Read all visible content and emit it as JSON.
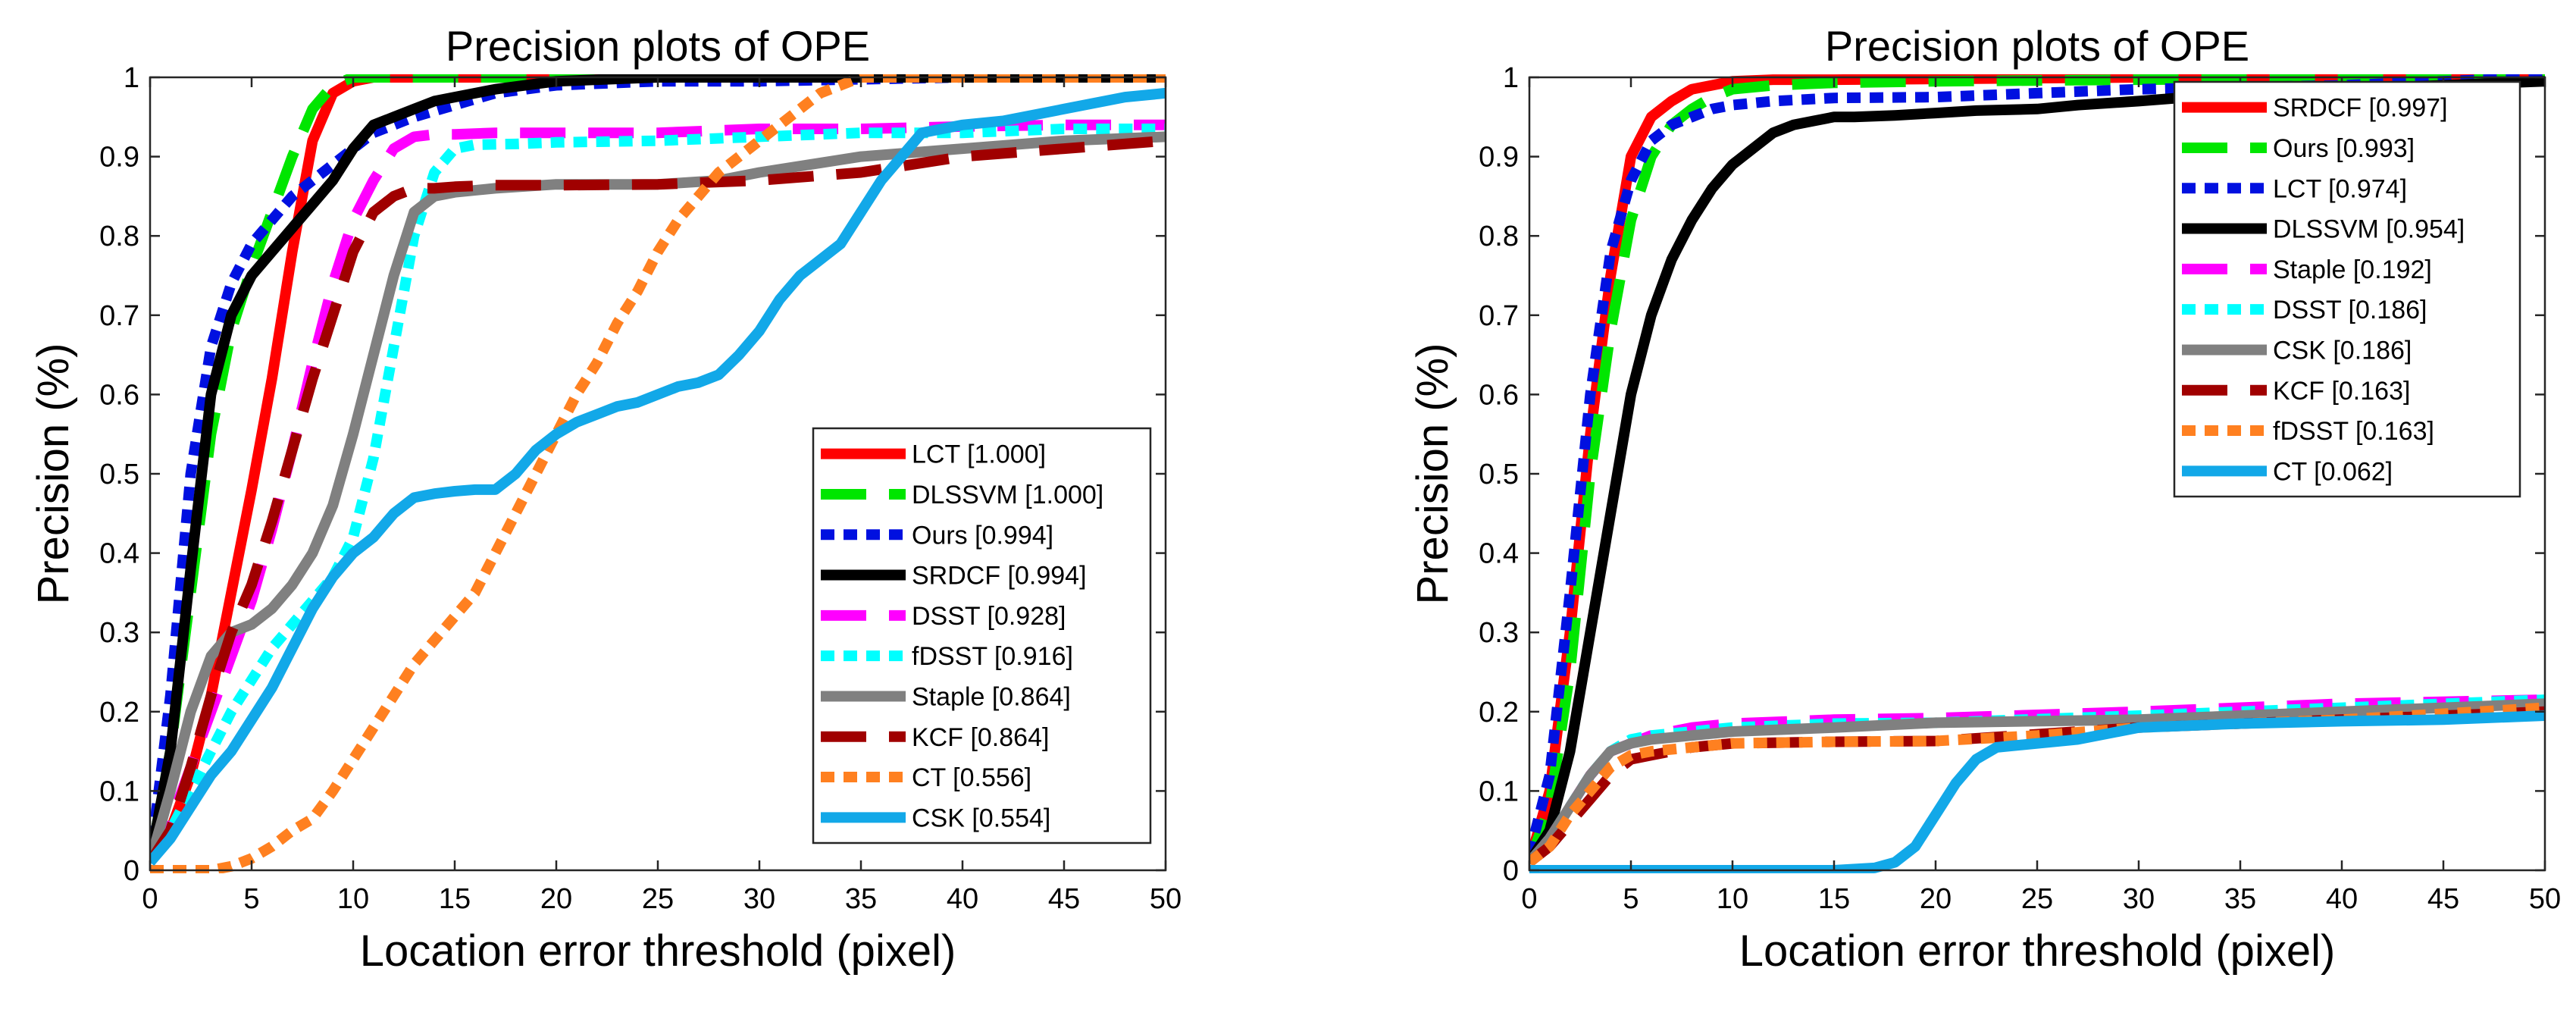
{
  "chart_data": [
    {
      "type": "line",
      "title": "Precision plots of OPE",
      "xlabel": "Location error threshold (pixel)",
      "ylabel": "Precision (%)",
      "xlim": [
        0,
        50
      ],
      "ylim": [
        0,
        1
      ],
      "xticks": [
        0,
        5,
        10,
        15,
        20,
        25,
        30,
        35,
        40,
        45,
        50
      ],
      "yticks": [
        0,
        0.1,
        0.2,
        0.3,
        0.4,
        0.5,
        0.6,
        0.7,
        0.8,
        0.9,
        1
      ],
      "xtick_labels": [
        "0",
        "5",
        "10",
        "15",
        "20",
        "25",
        "30",
        "35",
        "40",
        "45",
        "50"
      ],
      "ytick_labels": [
        "0",
        "0.1",
        "0.2",
        "0.3",
        "0.4",
        "0.5",
        "0.6",
        "0.7",
        "0.8",
        "0.9",
        "1"
      ],
      "grid": false,
      "legend_position": "lower-right",
      "series": [
        {
          "name": "LCT [1.000]",
          "color": "#ff0000",
          "style": "solid",
          "x": [
            0,
            1,
            2,
            3,
            4,
            5,
            6,
            7,
            8,
            9,
            10,
            11,
            12,
            15,
            20,
            50
          ],
          "y": [
            0.01,
            0.05,
            0.12,
            0.22,
            0.35,
            0.48,
            0.62,
            0.78,
            0.92,
            0.98,
            0.995,
            1,
            1,
            1,
            1,
            1
          ]
        },
        {
          "name": "DLSSVM [1.000]",
          "color": "#00e600",
          "style": "dash",
          "x": [
            0,
            1,
            2,
            3,
            4,
            5,
            6,
            7,
            8,
            9,
            10,
            12,
            15,
            50
          ],
          "y": [
            0.01,
            0.15,
            0.35,
            0.55,
            0.68,
            0.76,
            0.83,
            0.9,
            0.96,
            0.99,
            1,
            1,
            1,
            1
          ]
        },
        {
          "name": "Ours [0.994]",
          "color": "#0010e0",
          "style": "dot",
          "x": [
            0,
            1,
            2,
            3,
            4,
            5,
            6,
            7,
            8,
            9,
            10,
            11,
            12,
            13,
            15,
            17,
            20,
            25,
            30,
            40,
            50
          ],
          "y": [
            0.01,
            0.22,
            0.5,
            0.66,
            0.74,
            0.79,
            0.82,
            0.85,
            0.87,
            0.89,
            0.91,
            0.93,
            0.94,
            0.95,
            0.965,
            0.98,
            0.99,
            0.995,
            0.995,
            1,
            1
          ]
        },
        {
          "name": "SRDCF [0.994]",
          "color": "#000000",
          "style": "solid",
          "x": [
            0,
            1,
            2,
            3,
            4,
            5,
            6,
            7,
            8,
            9,
            10,
            11,
            12,
            13,
            14,
            15,
            17,
            20,
            25,
            30,
            40,
            50
          ],
          "y": [
            0.01,
            0.15,
            0.38,
            0.6,
            0.7,
            0.75,
            0.78,
            0.81,
            0.84,
            0.87,
            0.91,
            0.94,
            0.95,
            0.96,
            0.97,
            0.975,
            0.985,
            0.995,
            1,
            1,
            1,
            1
          ]
        },
        {
          "name": "DSST [0.928]",
          "color": "#ff00ff",
          "style": "dash",
          "x": [
            0,
            1,
            2,
            3,
            4,
            5,
            6,
            7,
            8,
            9,
            10,
            11,
            12,
            13,
            14,
            15,
            17,
            20,
            25,
            30,
            35,
            40,
            45,
            50
          ],
          "y": [
            0.01,
            0.06,
            0.13,
            0.2,
            0.27,
            0.34,
            0.43,
            0.53,
            0.64,
            0.74,
            0.82,
            0.87,
            0.91,
            0.925,
            0.928,
            0.928,
            0.93,
            0.93,
            0.93,
            0.935,
            0.935,
            0.938,
            0.94,
            0.94
          ]
        },
        {
          "name": "fDSST [0.916]",
          "color": "#00ffff",
          "style": "dot",
          "x": [
            0,
            1,
            2,
            3,
            4,
            5,
            6,
            7,
            8,
            9,
            10,
            11,
            12,
            13,
            14,
            15,
            16,
            18,
            20,
            25,
            30,
            35,
            40,
            45,
            50
          ],
          "y": [
            0.01,
            0.05,
            0.1,
            0.15,
            0.2,
            0.24,
            0.28,
            0.31,
            0.34,
            0.37,
            0.42,
            0.52,
            0.66,
            0.8,
            0.88,
            0.91,
            0.915,
            0.916,
            0.918,
            0.92,
            0.925,
            0.93,
            0.93,
            0.935,
            0.935
          ]
        },
        {
          "name": "Staple [0.864]",
          "color": "#808080",
          "style": "solid",
          "x": [
            0,
            1,
            2,
            3,
            4,
            5,
            6,
            7,
            8,
            9,
            10,
            11,
            12,
            13,
            14,
            15,
            17,
            20,
            25,
            28,
            30,
            35,
            40,
            45,
            50
          ],
          "y": [
            0.01,
            0.1,
            0.2,
            0.27,
            0.3,
            0.31,
            0.33,
            0.36,
            0.4,
            0.46,
            0.55,
            0.65,
            0.75,
            0.83,
            0.85,
            0.855,
            0.86,
            0.865,
            0.865,
            0.87,
            0.88,
            0.9,
            0.91,
            0.92,
            0.925
          ]
        },
        {
          "name": "KCF [0.864]",
          "color": "#a00000",
          "style": "dash",
          "x": [
            0,
            1,
            2,
            3,
            4,
            5,
            6,
            7,
            8,
            9,
            10,
            11,
            12,
            13,
            14,
            15,
            17,
            20,
            25,
            30,
            35,
            40,
            45,
            50
          ],
          "y": [
            0.01,
            0.05,
            0.13,
            0.22,
            0.3,
            0.36,
            0.44,
            0.53,
            0.62,
            0.7,
            0.78,
            0.83,
            0.85,
            0.86,
            0.86,
            0.862,
            0.864,
            0.864,
            0.865,
            0.87,
            0.88,
            0.9,
            0.91,
            0.92
          ]
        },
        {
          "name": "CT [0.556]",
          "color": "#ff8020",
          "style": "dot",
          "x": [
            0,
            1,
            2,
            3,
            4,
            5,
            6,
            7,
            8,
            9,
            10,
            11,
            12,
            13,
            14,
            15,
            16,
            17,
            18,
            19,
            20,
            21,
            22,
            23,
            24,
            25,
            26,
            27,
            28,
            29,
            30,
            31,
            32,
            33,
            34,
            35,
            36,
            37,
            38,
            40,
            45,
            50
          ],
          "y": [
            0,
            0,
            0,
            0,
            0.005,
            0.015,
            0.03,
            0.05,
            0.065,
            0.1,
            0.14,
            0.18,
            0.22,
            0.26,
            0.29,
            0.32,
            0.35,
            0.4,
            0.45,
            0.5,
            0.55,
            0.6,
            0.64,
            0.69,
            0.73,
            0.78,
            0.82,
            0.85,
            0.88,
            0.9,
            0.92,
            0.94,
            0.96,
            0.98,
            0.99,
            1,
            1,
            1,
            1,
            1,
            1,
            1
          ]
        },
        {
          "name": "CSK [0.554]",
          "color": "#12a8e8",
          "style": "solid",
          "x": [
            0,
            1,
            2,
            3,
            4,
            5,
            6,
            7,
            8,
            9,
            10,
            11,
            12,
            13,
            14,
            15,
            16,
            17,
            18,
            19,
            20,
            21,
            22,
            23,
            24,
            25,
            26,
            27,
            28,
            29,
            30,
            31,
            32,
            33,
            34,
            35,
            36,
            37,
            38,
            39,
            40,
            42,
            45,
            48,
            50
          ],
          "y": [
            0.01,
            0.04,
            0.08,
            0.12,
            0.15,
            0.19,
            0.23,
            0.28,
            0.33,
            0.37,
            0.4,
            0.42,
            0.45,
            0.47,
            0.475,
            0.478,
            0.48,
            0.48,
            0.5,
            0.53,
            0.55,
            0.565,
            0.575,
            0.585,
            0.59,
            0.6,
            0.61,
            0.615,
            0.625,
            0.65,
            0.68,
            0.72,
            0.75,
            0.77,
            0.79,
            0.83,
            0.87,
            0.9,
            0.93,
            0.935,
            0.94,
            0.945,
            0.96,
            0.975,
            0.98
          ]
        }
      ]
    },
    {
      "type": "line",
      "title": "Precision plots of OPE",
      "xlabel": "Location error threshold (pixel)",
      "ylabel": "Precision (%)",
      "xlim": [
        0,
        50
      ],
      "ylim": [
        0,
        1
      ],
      "xticks": [
        0,
        5,
        10,
        15,
        20,
        25,
        30,
        35,
        40,
        45,
        50
      ],
      "yticks": [
        0,
        0.1,
        0.2,
        0.3,
        0.4,
        0.5,
        0.6,
        0.7,
        0.8,
        0.9,
        1
      ],
      "xtick_labels": [
        "0",
        "5",
        "10",
        "15",
        "20",
        "25",
        "30",
        "35",
        "40",
        "45",
        "50"
      ],
      "ytick_labels": [
        "0",
        "0.1",
        "0.2",
        "0.3",
        "0.4",
        "0.5",
        "0.6",
        "0.7",
        "0.8",
        "0.9",
        "1"
      ],
      "grid": false,
      "legend_position": "top-right",
      "series": [
        {
          "name": "SRDCF [0.997]",
          "color": "#ff0000",
          "style": "solid",
          "x": [
            0,
            1,
            2,
            3,
            4,
            5,
            6,
            7,
            8,
            9,
            10,
            12,
            15,
            20,
            30,
            50
          ],
          "y": [
            0.01,
            0.1,
            0.3,
            0.55,
            0.75,
            0.9,
            0.95,
            0.97,
            0.985,
            0.99,
            0.995,
            0.997,
            0.997,
            0.998,
            1,
            1
          ]
        },
        {
          "name": "Ours [0.993]",
          "color": "#00e600",
          "style": "dash",
          "x": [
            0,
            1,
            2,
            3,
            4,
            5,
            6,
            7,
            8,
            9,
            10,
            12,
            15,
            20,
            30,
            50
          ],
          "y": [
            0.01,
            0.08,
            0.25,
            0.5,
            0.68,
            0.82,
            0.9,
            0.94,
            0.96,
            0.975,
            0.985,
            0.99,
            0.993,
            0.995,
            0.997,
            1
          ]
        },
        {
          "name": "LCT [0.974]",
          "color": "#0010e0",
          "style": "dot",
          "x": [
            0,
            1,
            2,
            3,
            4,
            5,
            6,
            7,
            8,
            9,
            10,
            12,
            15,
            20,
            25,
            30,
            40,
            50
          ],
          "y": [
            0.02,
            0.12,
            0.35,
            0.6,
            0.78,
            0.87,
            0.92,
            0.94,
            0.95,
            0.96,
            0.965,
            0.97,
            0.974,
            0.975,
            0.98,
            0.985,
            0.99,
            1
          ]
        },
        {
          "name": "DLSSVM [0.954]",
          "color": "#000000",
          "style": "solid",
          "x": [
            0,
            1,
            2,
            3,
            4,
            5,
            6,
            7,
            8,
            9,
            10,
            11,
            12,
            13,
            14,
            15,
            16,
            18,
            20,
            22,
            25,
            27,
            30,
            35,
            40,
            45,
            50
          ],
          "y": [
            0.01,
            0.05,
            0.15,
            0.3,
            0.45,
            0.6,
            0.7,
            0.77,
            0.82,
            0.86,
            0.89,
            0.91,
            0.93,
            0.94,
            0.945,
            0.95,
            0.95,
            0.952,
            0.955,
            0.958,
            0.96,
            0.965,
            0.97,
            0.98,
            0.985,
            0.99,
            0.995
          ]
        },
        {
          "name": "Staple [0.192]",
          "color": "#ff00ff",
          "style": "dash",
          "x": [
            0,
            1,
            2,
            3,
            4,
            5,
            6,
            8,
            10,
            15,
            20,
            30,
            40,
            50
          ],
          "y": [
            0.01,
            0.04,
            0.08,
            0.12,
            0.15,
            0.16,
            0.17,
            0.18,
            0.185,
            0.19,
            0.192,
            0.2,
            0.21,
            0.215
          ]
        },
        {
          "name": "DSST [0.186]",
          "color": "#00ffff",
          "style": "dot",
          "x": [
            0,
            1,
            2,
            3,
            4,
            5,
            6,
            8,
            10,
            15,
            20,
            30,
            40,
            50
          ],
          "y": [
            0.01,
            0.04,
            0.08,
            0.12,
            0.15,
            0.165,
            0.17,
            0.175,
            0.18,
            0.185,
            0.186,
            0.195,
            0.205,
            0.215
          ]
        },
        {
          "name": "CSK [0.186]",
          "color": "#808080",
          "style": "solid",
          "x": [
            0,
            1,
            2,
            3,
            4,
            5,
            6,
            8,
            10,
            15,
            20,
            30,
            40,
            50
          ],
          "y": [
            0.01,
            0.04,
            0.08,
            0.12,
            0.15,
            0.16,
            0.165,
            0.17,
            0.175,
            0.18,
            0.186,
            0.19,
            0.2,
            0.21
          ]
        },
        {
          "name": "KCF [0.163]",
          "color": "#a00000",
          "style": "dash",
          "x": [
            0,
            1,
            2,
            3,
            4,
            5,
            6,
            7,
            8,
            10,
            15,
            20,
            30,
            40,
            50
          ],
          "y": [
            0.01,
            0.03,
            0.06,
            0.09,
            0.12,
            0.14,
            0.145,
            0.15,
            0.155,
            0.16,
            0.162,
            0.163,
            0.18,
            0.19,
            0.2
          ]
        },
        {
          "name": "fDSST [0.163]",
          "color": "#ff8020",
          "style": "dot",
          "x": [
            0,
            1,
            2,
            3,
            4,
            5,
            6,
            8,
            10,
            15,
            20,
            25,
            30,
            40,
            50
          ],
          "y": [
            0.01,
            0.03,
            0.07,
            0.1,
            0.13,
            0.145,
            0.15,
            0.155,
            0.16,
            0.162,
            0.163,
            0.17,
            0.18,
            0.19,
            0.205
          ]
        },
        {
          "name": "CT [0.062]",
          "color": "#12a8e8",
          "style": "solid",
          "x": [
            0,
            5,
            10,
            15,
            17,
            18,
            19,
            20,
            21,
            22,
            23,
            25,
            27,
            29,
            30,
            35,
            40,
            45,
            50
          ],
          "y": [
            0,
            0,
            0,
            0,
            0.003,
            0.01,
            0.03,
            0.07,
            0.11,
            0.14,
            0.155,
            0.16,
            0.165,
            0.175,
            0.18,
            0.185,
            0.188,
            0.19,
            0.195
          ]
        }
      ]
    }
  ]
}
